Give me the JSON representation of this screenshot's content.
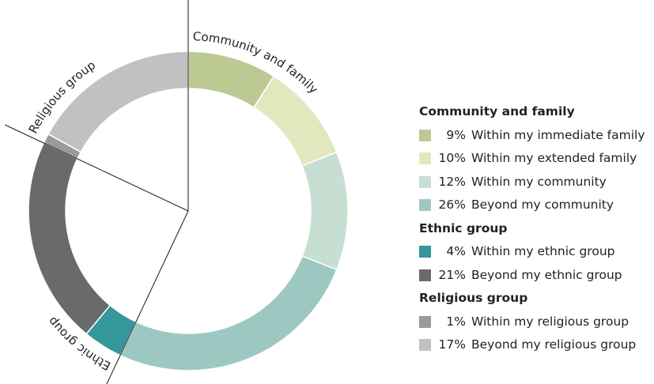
{
  "chart_data": {
    "type": "pie",
    "donut": true,
    "groups": [
      {
        "name": "Community and family",
        "items": [
          {
            "label": "Within my immediate family",
            "value": 9,
            "display": "9%",
            "color": "#bdc993"
          },
          {
            "label": "Within my extended family",
            "value": 10,
            "display": "10%",
            "color": "#e3e7bd"
          },
          {
            "label": "Within my community",
            "value": 12,
            "display": "12%",
            "color": "#c6dfd2"
          },
          {
            "label": "Beyond my community",
            "value": 26,
            "display": "26%",
            "color": "#9cc8c1"
          }
        ]
      },
      {
        "name": "Ethnic group",
        "items": [
          {
            "label": "Within my ethnic group",
            "value": 4,
            "display": "4%",
            "color": "#33979b"
          },
          {
            "label": "Beyond my ethnic group",
            "value": 21,
            "display": "21%",
            "color": "#6a6a6d"
          }
        ]
      },
      {
        "name": "Religious group",
        "items": [
          {
            "label": "Within my religious group",
            "value": 1,
            "display": "1%",
            "color": "#9a9a9d"
          },
          {
            "label": "Beyond my religious group",
            "value": 17,
            "display": "17%",
            "color": "#c1c1c3"
          }
        ]
      }
    ]
  }
}
